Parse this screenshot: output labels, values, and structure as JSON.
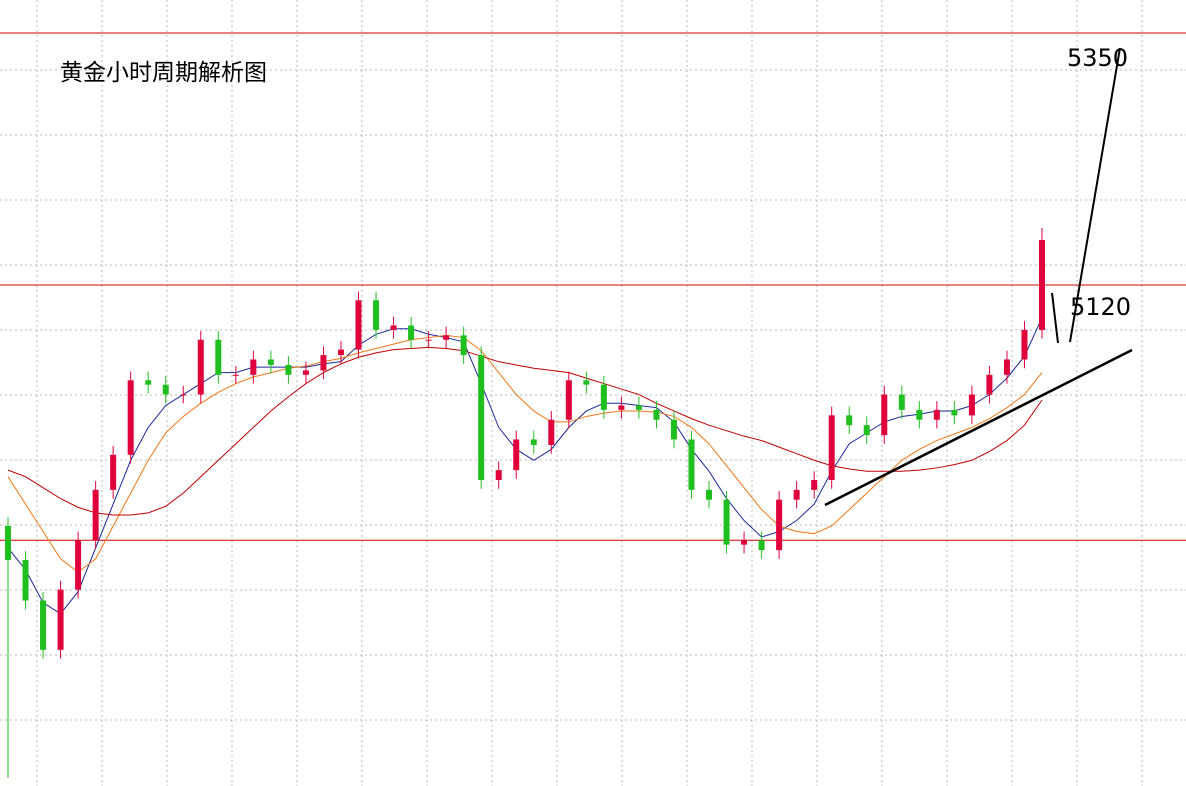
{
  "chart_data": {
    "type": "candlestick",
    "title": "黄金小时周期解析图",
    "ylim": [
      4662.7,
      5380.1
    ],
    "up_color": "#e0003c",
    "down_color": "#1fbf1f",
    "open": [
      4900,
      4869,
      4832,
      4787,
      4842,
      4887,
      4933,
      4965,
      5033,
      5029,
      5020,
      5020,
      5070,
      5038,
      5038,
      5052,
      5047,
      5038,
      5042,
      5056,
      5061,
      5106,
      5079,
      5083,
      5070,
      5070,
      5074,
      5056,
      4942,
      4951,
      4979,
      4974,
      4997,
      5033,
      5029,
      5006,
      5010,
      5006,
      4997,
      4979,
      4933,
      4924,
      4883,
      4887,
      4878,
      4924,
      4933,
      4942,
      5001,
      4992,
      4983,
      5020,
      5006,
      4997,
      5006,
      5001,
      5020,
      5038,
      5052,
      5079
    ],
    "high": [
      4908,
      4877,
      4840,
      4850,
      4895,
      4941,
      4973,
      5041,
      5041,
      5037,
      5028,
      5078,
      5078,
      5046,
      5060,
      5060,
      5055,
      5050,
      5064,
      5069,
      5114,
      5114,
      5091,
      5091,
      5078,
      5082,
      5082,
      5064,
      4959,
      4987,
      4987,
      5005,
      5041,
      5041,
      5037,
      5018,
      5018,
      5014,
      5005,
      4987,
      4941,
      4932,
      4895,
      4895,
      4932,
      4941,
      4950,
      5009,
      5009,
      5000,
      5028,
      5028,
      5014,
      5014,
      5014,
      5028,
      5046,
      5060,
      5087,
      5172
    ],
    "low": [
      4670,
      4824,
      4779,
      4779,
      4834,
      4879,
      4925,
      4957,
      5021,
      5012,
      5012,
      5012,
      5030,
      5030,
      5030,
      5039,
      5030,
      5030,
      5034,
      5048,
      5053,
      5071,
      5071,
      5062,
      5062,
      5062,
      5048,
      4934,
      4934,
      4943,
      4966,
      4966,
      4989,
      5021,
      4998,
      4998,
      4998,
      4989,
      4971,
      4925,
      4916,
      4875,
      4875,
      4870,
      4870,
      4916,
      4925,
      4934,
      4984,
      4975,
      4975,
      4998,
      4989,
      4989,
      4993,
      4993,
      5012,
      5030,
      5044,
      5071
    ],
    "close": [
      4869,
      4832,
      4787,
      4842,
      4887,
      4933,
      4965,
      5033,
      5029,
      5020,
      5020,
      5070,
      5038,
      5038,
      5052,
      5047,
      5038,
      5042,
      5056,
      5061,
      5106,
      5079,
      5083,
      5070,
      5070,
      5074,
      5056,
      4942,
      4951,
      4979,
      4974,
      4997,
      5033,
      5029,
      5006,
      5010,
      5006,
      4997,
      4979,
      4933,
      4924,
      4883,
      4887,
      4878,
      4924,
      4933,
      4942,
      5001,
      4992,
      4983,
      5020,
      5006,
      4997,
      5006,
      5001,
      5020,
      5038,
      5052,
      5079,
      5161
    ],
    "series": [
      {
        "color": "#1a2a9a",
        "values": [
          4880,
          4860,
          4830,
          4820,
          4840,
          4880,
          4920,
          4960,
          4990,
          5010,
          5020,
          5030,
          5040,
          5040,
          5045,
          5045,
          5045,
          5045,
          5048,
          5050,
          5065,
          5075,
          5080,
          5080,
          5075,
          5072,
          5068,
          5030,
          4990,
          4970,
          4960,
          4970,
          4990,
          5005,
          5012,
          5012,
          5010,
          5008,
          4995,
          4970,
          4950,
          4925,
          4905,
          4890,
          4895,
          4905,
          4920,
          4950,
          4975,
          4985,
          4995,
          5000,
          5002,
          5005,
          5005,
          5010,
          5020,
          5035,
          5055,
          5090
        ]
      },
      {
        "color": "#f07818",
        "values": [
          4945,
          4920,
          4895,
          4870,
          4858,
          4870,
          4900,
          4930,
          4960,
          4985,
          5000,
          5012,
          5022,
          5030,
          5036,
          5040,
          5044,
          5046,
          5050,
          5053,
          5058,
          5062,
          5066,
          5070,
          5072,
          5074,
          5072,
          5060,
          5040,
          5020,
          5005,
          4995,
          4995,
          5000,
          5003,
          5005,
          5005,
          5004,
          5000,
          4990,
          4975,
          4955,
          4935,
          4915,
          4900,
          4895,
          4893,
          4900,
          4915,
          4930,
          4945,
          4960,
          4970,
          4978,
          4984,
          4990,
          4998,
          5008,
          5020,
          5040
        ]
      },
      {
        "color": "#c00000",
        "values": [
          4951,
          4945,
          4935,
          4925,
          4917,
          4912,
          4910,
          4910,
          4912,
          4918,
          4930,
          4945,
          4960,
          4975,
          4990,
          5005,
          5018,
          5030,
          5040,
          5048,
          5054,
          5058,
          5061,
          5062,
          5063,
          5062,
          5060,
          5055,
          5050,
          5047,
          5044,
          5042,
          5040,
          5035,
          5030,
          5025,
          5020,
          5012,
          5005,
          4998,
          4992,
          4987,
          4982,
          4978,
          4972,
          4966,
          4960,
          4955,
          4952,
          4950,
          4950,
          4950,
          4951,
          4953,
          4956,
          4960,
          4968,
          4978,
          4992,
          5015
        ]
      }
    ],
    "hlines": [
      5350,
      5120,
      4887
    ],
    "hline_color": "#d40000",
    "annotations": [
      {
        "text": "5350",
        "value": 5350
      },
      {
        "text": "5120",
        "value": 5120
      }
    ]
  }
}
